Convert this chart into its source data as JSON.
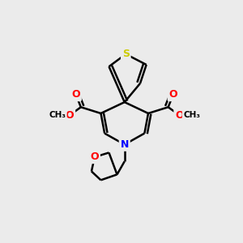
{
  "background_color": "#ebebeb",
  "atom_colors": {
    "S": "#cccc00",
    "O": "#ff0000",
    "N": "#0000ff",
    "C": "#000000"
  },
  "bond_color": "#000000",
  "bond_width": 1.8,
  "figsize": [
    3.0,
    3.0
  ],
  "dpi": 100
}
